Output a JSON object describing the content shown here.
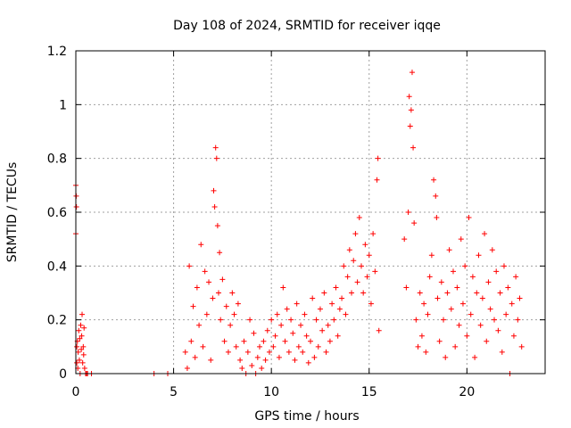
{
  "chart_data": {
    "type": "scatter",
    "title": "Day 108 of 2024, SRMTID for receiver iqqe",
    "xlabel": "GPS time / hours",
    "ylabel": "SRMTID / TECUs",
    "xlim": [
      0,
      24
    ],
    "ylim": [
      0,
      1.2
    ],
    "x_ticks": [
      0,
      5,
      10,
      15,
      20
    ],
    "x_tick_labels": [
      "0",
      "5",
      "10",
      "15",
      "20"
    ],
    "y_ticks": [
      0,
      0.2,
      0.4,
      0.6,
      0.8,
      1,
      1.2
    ],
    "y_tick_labels": [
      "0",
      "0.2",
      "0.4",
      "0.6",
      "0.8",
      "1",
      "1.2"
    ],
    "grid": true,
    "marker": "plus",
    "series": [
      {
        "name": "SRMTID",
        "color": "#ff0000",
        "x": [
          0.0,
          0.0,
          0.02,
          0.03,
          0.05,
          0.05,
          0.08,
          0.1,
          0.12,
          0.15,
          0.18,
          0.2,
          0.22,
          0.25,
          0.28,
          0.3,
          0.32,
          0.35,
          0.38,
          0.4,
          0.42,
          0.45,
          0.5,
          0.55,
          0.6,
          0.8,
          4.0,
          4.7,
          5.6,
          5.7,
          5.8,
          5.9,
          6.0,
          6.1,
          6.2,
          6.3,
          6.4,
          6.5,
          6.6,
          6.7,
          6.8,
          6.9,
          7.0,
          7.05,
          7.1,
          7.15,
          7.2,
          7.25,
          7.3,
          7.35,
          7.4,
          7.5,
          7.6,
          7.7,
          7.8,
          7.9,
          8.0,
          8.1,
          8.2,
          8.3,
          8.4,
          8.5,
          8.6,
          8.7,
          8.8,
          8.9,
          9.0,
          9.1,
          9.2,
          9.3,
          9.4,
          9.5,
          9.6,
          9.7,
          9.8,
          9.9,
          10.0,
          10.1,
          10.2,
          10.3,
          10.4,
          10.5,
          10.6,
          10.7,
          10.8,
          10.9,
          11.0,
          11.1,
          11.2,
          11.3,
          11.4,
          11.5,
          11.6,
          11.7,
          11.8,
          11.9,
          12.0,
          12.1,
          12.2,
          12.3,
          12.4,
          12.5,
          12.6,
          12.7,
          12.8,
          12.9,
          13.0,
          13.1,
          13.2,
          13.3,
          13.4,
          13.5,
          13.6,
          13.7,
          13.8,
          13.9,
          14.0,
          14.1,
          14.2,
          14.3,
          14.4,
          14.5,
          14.6,
          14.7,
          14.8,
          14.9,
          15.0,
          15.1,
          15.2,
          15.3,
          15.4,
          15.45,
          15.5,
          16.8,
          16.9,
          17.0,
          17.05,
          17.1,
          17.15,
          17.2,
          17.25,
          17.3,
          17.4,
          17.5,
          17.6,
          17.7,
          17.8,
          17.9,
          18.0,
          18.1,
          18.2,
          18.3,
          18.4,
          18.45,
          18.5,
          18.6,
          18.7,
          18.8,
          18.9,
          19.0,
          19.1,
          19.2,
          19.3,
          19.4,
          19.5,
          19.6,
          19.7,
          19.8,
          19.9,
          20.0,
          20.1,
          20.2,
          20.3,
          20.4,
          20.5,
          20.6,
          20.7,
          20.8,
          20.9,
          21.0,
          21.1,
          21.2,
          21.3,
          21.4,
          21.5,
          21.6,
          21.7,
          21.8,
          21.9,
          22.0,
          22.1,
          22.2,
          22.3,
          22.4,
          22.5,
          22.6,
          22.7,
          22.8
        ],
        "y": [
          0.52,
          0.7,
          0.66,
          0.62,
          0.1,
          0.04,
          0.12,
          0.02,
          0.08,
          0.16,
          0.05,
          0.13,
          0.0,
          0.18,
          0.09,
          0.14,
          0.22,
          0.04,
          0.1,
          0.07,
          0.17,
          0.02,
          0.0,
          0.0,
          0.0,
          0.0,
          0.0,
          0.0,
          0.08,
          0.02,
          0.4,
          0.12,
          0.25,
          0.06,
          0.32,
          0.18,
          0.48,
          0.1,
          0.38,
          0.22,
          0.34,
          0.05,
          0.28,
          0.68,
          0.62,
          0.84,
          0.8,
          0.55,
          0.3,
          0.45,
          0.2,
          0.35,
          0.12,
          0.25,
          0.08,
          0.18,
          0.3,
          0.22,
          0.1,
          0.26,
          0.05,
          0.02,
          0.12,
          0.0,
          0.08,
          0.2,
          0.03,
          0.15,
          0.0,
          0.06,
          0.1,
          0.02,
          0.12,
          0.05,
          0.16,
          0.08,
          0.2,
          0.1,
          0.14,
          0.22,
          0.06,
          0.18,
          0.32,
          0.12,
          0.24,
          0.08,
          0.2,
          0.15,
          0.05,
          0.26,
          0.1,
          0.18,
          0.08,
          0.22,
          0.14,
          0.04,
          0.12,
          0.28,
          0.06,
          0.2,
          0.1,
          0.24,
          0.16,
          0.3,
          0.08,
          0.18,
          0.12,
          0.26,
          0.2,
          0.32,
          0.14,
          0.24,
          0.28,
          0.4,
          0.22,
          0.36,
          0.46,
          0.3,
          0.42,
          0.52,
          0.34,
          0.58,
          0.4,
          0.3,
          0.48,
          0.36,
          0.44,
          0.26,
          0.52,
          0.38,
          0.72,
          0.8,
          0.16,
          0.5,
          0.32,
          0.6,
          1.03,
          0.92,
          0.98,
          1.12,
          0.84,
          0.56,
          0.2,
          0.1,
          0.3,
          0.14,
          0.26,
          0.08,
          0.22,
          0.36,
          0.44,
          0.72,
          0.66,
          0.58,
          0.28,
          0.12,
          0.34,
          0.2,
          0.06,
          0.3,
          0.46,
          0.24,
          0.38,
          0.1,
          0.32,
          0.18,
          0.5,
          0.26,
          0.4,
          0.14,
          0.58,
          0.22,
          0.36,
          0.06,
          0.3,
          0.44,
          0.18,
          0.28,
          0.52,
          0.12,
          0.34,
          0.24,
          0.46,
          0.2,
          0.38,
          0.16,
          0.3,
          0.08,
          0.4,
          0.22,
          0.32,
          0.0,
          0.26,
          0.14,
          0.36,
          0.2,
          0.28,
          0.1
        ]
      }
    ]
  }
}
